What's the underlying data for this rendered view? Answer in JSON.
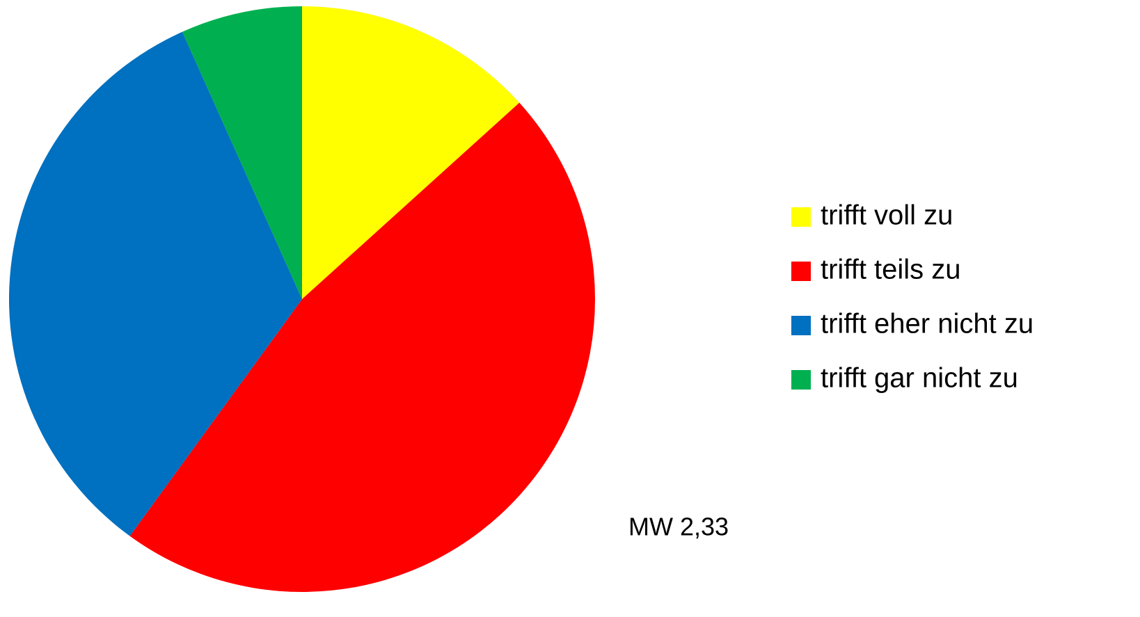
{
  "chart_data": {
    "type": "pie",
    "categories": [
      "trifft voll zu",
      "trifft teils zu",
      "trifft eher nicht zu",
      "trifft gar nicht zu"
    ],
    "values": [
      13.3,
      46.7,
      33.3,
      6.7
    ],
    "colors": [
      "#ffff00",
      "#ff0000",
      "#0070c0",
      "#00b050"
    ],
    "annotation": "MW 2,33",
    "legend": "right"
  }
}
